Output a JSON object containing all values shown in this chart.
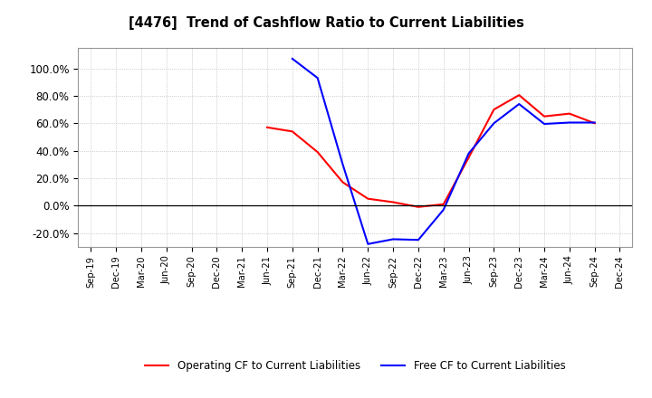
{
  "title": "[4476]  Trend of Cashflow Ratio to Current Liabilities",
  "x_labels": [
    "Sep-19",
    "Dec-19",
    "Mar-20",
    "Jun-20",
    "Sep-20",
    "Dec-20",
    "Mar-21",
    "Jun-21",
    "Sep-21",
    "Dec-21",
    "Mar-22",
    "Jun-22",
    "Sep-22",
    "Dec-22",
    "Mar-23",
    "Jun-23",
    "Sep-23",
    "Dec-23",
    "Mar-24",
    "Jun-24",
    "Sep-24",
    "Dec-24"
  ],
  "operating_cf": [
    null,
    null,
    null,
    null,
    null,
    null,
    null,
    57.0,
    54.0,
    39.0,
    17.0,
    5.0,
    2.5,
    -1.0,
    1.0,
    35.0,
    70.0,
    80.5,
    65.0,
    67.0,
    60.0,
    null
  ],
  "free_cf": [
    null,
    null,
    null,
    null,
    null,
    null,
    null,
    null,
    107.0,
    93.0,
    30.0,
    -28.0,
    -24.5,
    -25.0,
    -3.0,
    38.0,
    60.0,
    74.0,
    59.5,
    60.5,
    60.5,
    null
  ],
  "ylim": [
    -30,
    115
  ],
  "yticks": [
    -20,
    0,
    20,
    40,
    60,
    80,
    100
  ],
  "ytick_labels": [
    "-20.0%",
    "0.0%",
    "20.0%",
    "40.0%",
    "60.0%",
    "80.0%",
    "100.0%"
  ],
  "operating_color": "#ff0000",
  "free_color": "#0000ff",
  "bg_color": "#ffffff",
  "plot_bg_color": "#ffffff",
  "grid_color": "#bbbbbb",
  "legend_labels": [
    "Operating CF to Current Liabilities",
    "Free CF to Current Liabilities"
  ]
}
